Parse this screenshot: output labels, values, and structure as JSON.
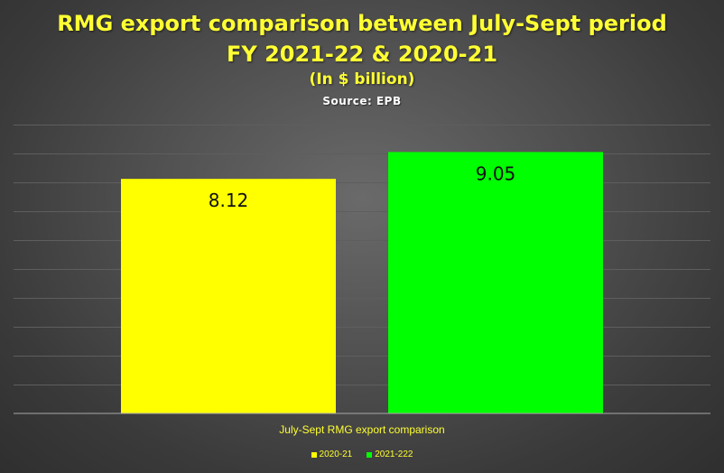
{
  "chart_data": {
    "type": "bar",
    "title": [
      "RMG export comparison between July-Sept period",
      "FY 2021-22 & 2020-21"
    ],
    "subtitle": "(In $ billion)",
    "source": "Source: EPB",
    "categories": [
      "July-Sept RMG export comparison"
    ],
    "series": [
      {
        "name": "2020-21",
        "values": [
          8.12
        ],
        "color": "#ffff00"
      },
      {
        "name": "2021-222",
        "values": [
          9.05
        ],
        "color": "#00ff00"
      }
    ],
    "xlabel": "",
    "ylabel": "",
    "ylim": [
      0,
      10
    ],
    "y_axis_labels_visible": false,
    "grid": true,
    "legend": "bottom"
  }
}
